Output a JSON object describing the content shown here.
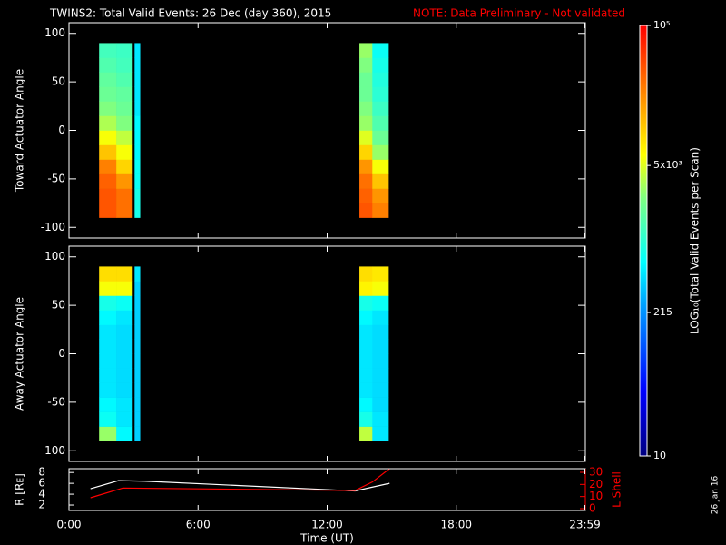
{
  "page": {
    "title": "TWINS2: Total Valid Events: 26 Dec (day 360), 2015",
    "note": "NOTE: Data Preliminary - Not validated",
    "date_stamp": "26 Jan 16"
  },
  "colorbar": {
    "label": "LOG₁₀(Total Valid Events per Scan)",
    "lim": [
      10,
      100000
    ],
    "log": true,
    "ticks": [
      10,
      215,
      {
        "value": 5000,
        "label": "5x10³"
      },
      {
        "value": 100000,
        "label": "10⁵"
      }
    ],
    "colorscale": [
      [
        0,
        "#000080"
      ],
      [
        0.15,
        "#0000ff"
      ],
      [
        0.35,
        "#00a0ff"
      ],
      [
        0.45,
        "#00ffff"
      ],
      [
        0.6,
        "#80ff80"
      ],
      [
        0.7,
        "#ffff00"
      ],
      [
        0.85,
        "#ff8000"
      ],
      [
        1,
        "#ff0000"
      ]
    ]
  },
  "chart_data": [
    {
      "type": "heatmap",
      "ylabel": "Toward Actuator Angle",
      "ylim": [
        -111,
        111
      ],
      "yticks": [
        -100,
        -50,
        0,
        50,
        100
      ],
      "x_edges": [
        1.4,
        2.2,
        2.95,
        3.05,
        3.3,
        13.5,
        14.1,
        14.85
      ],
      "y_edges": [
        -90,
        -75,
        -60,
        -45,
        -30,
        -15,
        0,
        15,
        30,
        45,
        60,
        75,
        90
      ],
      "values": [
        [
          40000,
          40000,
          35000,
          25000,
          12000,
          6000,
          3500,
          2500,
          2000,
          1800,
          1500,
          1300
        ],
        [
          30000,
          30000,
          20000,
          10000,
          6000,
          4000,
          2500,
          2000,
          1800,
          1500,
          1300,
          1200
        ],
        [
          null,
          null,
          null,
          null,
          null,
          null,
          null,
          null,
          null,
          null,
          null,
          null
        ],
        [
          800,
          800,
          700,
          700,
          600,
          600,
          600,
          500,
          500,
          500,
          500,
          500
        ],
        [
          null,
          null,
          null,
          null,
          null,
          null,
          null,
          null,
          null,
          null,
          null,
          null
        ],
        [
          40000,
          35000,
          30000,
          20000,
          10000,
          5000,
          3000,
          2500,
          2000,
          2000,
          2500,
          3000
        ],
        [
          25000,
          20000,
          12000,
          6000,
          3000,
          2000,
          1500,
          1200,
          1000,
          900,
          800,
          700
        ]
      ]
    },
    {
      "type": "heatmap",
      "ylabel": "Away Actuator Angle",
      "ylim": [
        -111,
        111
      ],
      "yticks": [
        -100,
        -50,
        0,
        50,
        100
      ],
      "x_edges": [
        1.4,
        2.2,
        2.95,
        3.05,
        3.3,
        13.5,
        14.1,
        14.85
      ],
      "y_edges": [
        -90,
        -75,
        -60,
        -45,
        -30,
        -15,
        0,
        15,
        30,
        45,
        60,
        75,
        90
      ],
      "values": [
        [
          3000,
          700,
          600,
          500,
          500,
          500,
          500,
          500,
          600,
          800,
          6000,
          9000
        ],
        [
          600,
          500,
          500,
          450,
          450,
          450,
          450,
          450,
          500,
          700,
          6000,
          9000
        ],
        [
          null,
          null,
          null,
          null,
          null,
          null,
          null,
          null,
          null,
          null,
          null,
          null
        ],
        [
          400,
          400,
          400,
          400,
          400,
          400,
          400,
          400,
          400,
          400,
          400,
          500
        ],
        [
          null,
          null,
          null,
          null,
          null,
          null,
          null,
          null,
          null,
          null,
          null,
          null
        ],
        [
          4000,
          800,
          600,
          500,
          500,
          500,
          500,
          500,
          600,
          800,
          7000,
          9000
        ],
        [
          500,
          500,
          450,
          450,
          450,
          450,
          450,
          450,
          500,
          700,
          6000,
          8000
        ]
      ]
    },
    {
      "type": "line",
      "xlabel": "Time (UT)",
      "xlim": [
        0,
        24
      ],
      "xticks": [
        {
          "value": 0,
          "label": "0:00"
        },
        {
          "value": 6,
          "label": "6:00"
        },
        {
          "value": 12,
          "label": "12:00"
        },
        {
          "value": 18,
          "label": "18:00"
        },
        {
          "value": 23.98,
          "label": "23:59"
        }
      ],
      "ylabel": "R [Rᴇ]",
      "ylim": [
        1,
        8.7
      ],
      "yticks": [
        2,
        4,
        6,
        8
      ],
      "y2label": "L Shell",
      "y2lim": [
        -1.5,
        33
      ],
      "y2ticks": [
        0,
        10,
        20,
        30
      ],
      "y2color": "#ff0000",
      "series": [
        {
          "color": "#ffffff",
          "x": [
            1.0,
            2.3,
            3.5,
            13.3,
            14.9
          ],
          "values": [
            5.0,
            6.5,
            6.4,
            4.6,
            6.0
          ]
        },
        {
          "color": "#ff0000",
          "axis": "y2",
          "x": [
            1.0,
            2.5,
            13.3,
            14.1,
            14.9
          ],
          "values": [
            9,
            17,
            15,
            22,
            33
          ]
        }
      ]
    }
  ]
}
